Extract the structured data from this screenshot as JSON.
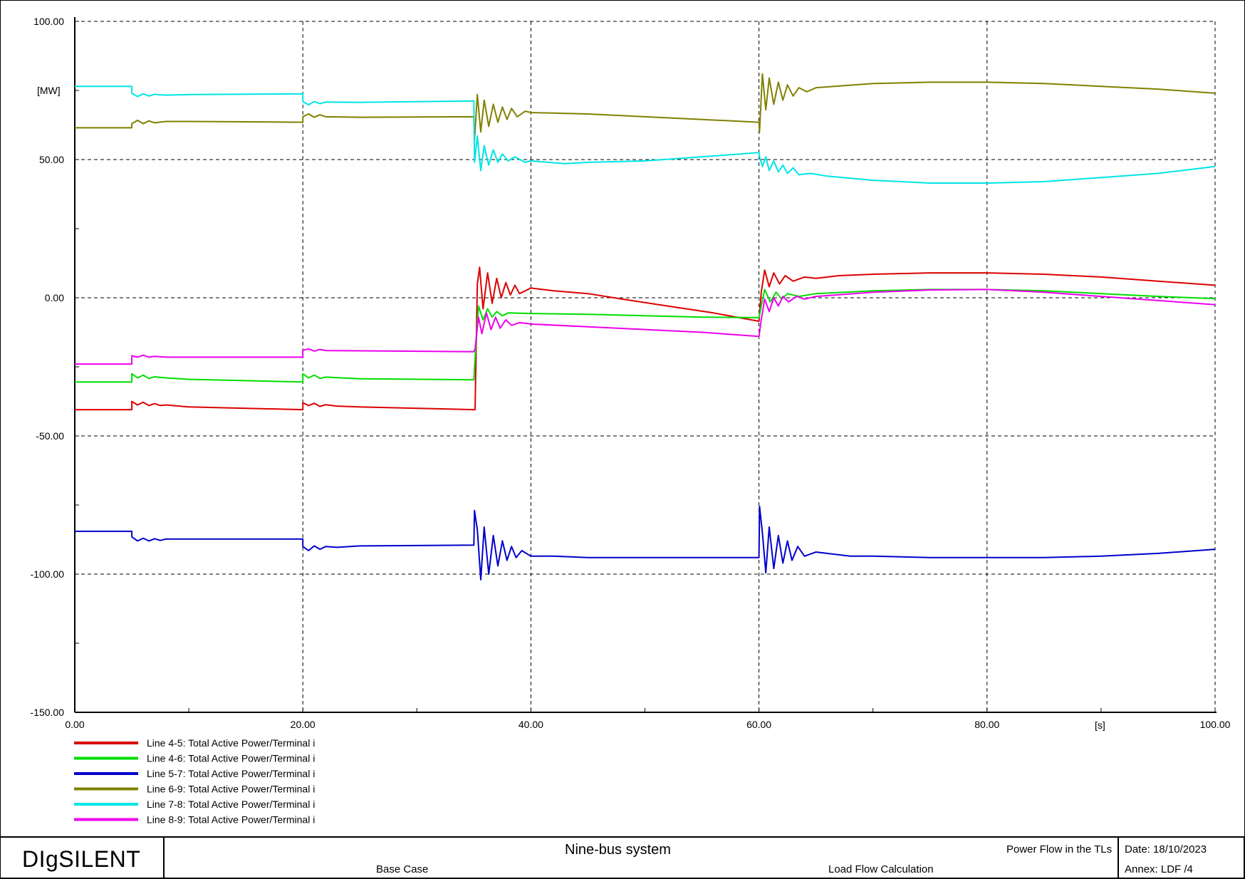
{
  "chart_data": {
    "type": "line",
    "xlabel": "",
    "x_unit": "[s]",
    "ylabel": "[MW]",
    "xlim": [
      0,
      100
    ],
    "ylim": [
      -150,
      100
    ],
    "x_ticks": [
      "0.00",
      "20.00",
      "40.00",
      "60.00",
      "80.00",
      "100.00"
    ],
    "y_ticks": [
      "100.00",
      "50.00",
      "0.00",
      "-50.00",
      "-100.00",
      "-150.00"
    ],
    "grid": true,
    "legend_position": "bottom-left",
    "series": [
      {
        "name": "Line 4-5: Total Active Power/Terminal i",
        "color": "#dd0000",
        "points": [
          [
            0,
            -40.5
          ],
          [
            5,
            -40.5
          ],
          [
            5,
            -37.5
          ],
          [
            5.5,
            -38.8
          ],
          [
            6,
            -37.8
          ],
          [
            6.5,
            -39
          ],
          [
            7,
            -38.3
          ],
          [
            7.5,
            -39
          ],
          [
            8,
            -38.8
          ],
          [
            10,
            -39.5
          ],
          [
            20,
            -40.5
          ],
          [
            20,
            -38
          ],
          [
            20.5,
            -39
          ],
          [
            21,
            -38.2
          ],
          [
            21.5,
            -39.3
          ],
          [
            22,
            -38.7
          ],
          [
            23,
            -39.2
          ],
          [
            25,
            -39.5
          ],
          [
            35,
            -40.5
          ],
          [
            35.1,
            -40.5
          ],
          [
            35.3,
            5
          ],
          [
            35.5,
            11
          ],
          [
            35.8,
            -4
          ],
          [
            36.2,
            9
          ],
          [
            36.6,
            -2
          ],
          [
            37,
            7
          ],
          [
            37.4,
            0
          ],
          [
            37.8,
            5.5
          ],
          [
            38.2,
            1
          ],
          [
            38.6,
            4.5
          ],
          [
            39,
            1.5
          ],
          [
            40,
            3.5
          ],
          [
            42,
            2.5
          ],
          [
            45,
            1.5
          ],
          [
            48,
            -0.5
          ],
          [
            52,
            -3
          ],
          [
            56,
            -5.5
          ],
          [
            60,
            -8.5
          ],
          [
            60.2,
            2
          ],
          [
            60.5,
            10
          ],
          [
            60.9,
            4
          ],
          [
            61.3,
            9
          ],
          [
            61.8,
            5
          ],
          [
            62.3,
            8
          ],
          [
            63,
            6
          ],
          [
            64,
            7.5
          ],
          [
            65,
            7
          ],
          [
            67,
            8
          ],
          [
            70,
            8.5
          ],
          [
            75,
            9
          ],
          [
            80,
            9
          ],
          [
            85,
            8.5
          ],
          [
            90,
            7.5
          ],
          [
            95,
            6
          ],
          [
            100,
            4.5
          ]
        ]
      },
      {
        "name": "Line 4-6: Total Active Power/Terminal i",
        "color": "#00dd00",
        "points": [
          [
            0,
            -30.5
          ],
          [
            5,
            -30.5
          ],
          [
            5,
            -27.5
          ],
          [
            5.5,
            -29
          ],
          [
            6,
            -28
          ],
          [
            6.5,
            -29.2
          ],
          [
            7,
            -28.6
          ],
          [
            8,
            -29
          ],
          [
            10,
            -29.5
          ],
          [
            20,
            -30.5
          ],
          [
            20,
            -27.5
          ],
          [
            20.5,
            -29
          ],
          [
            21,
            -28
          ],
          [
            21.5,
            -29.2
          ],
          [
            22,
            -28.7
          ],
          [
            25,
            -29.3
          ],
          [
            35,
            -29.7
          ],
          [
            35.1,
            -22
          ],
          [
            35.4,
            -3
          ],
          [
            35.8,
            -8
          ],
          [
            36.2,
            -4
          ],
          [
            36.6,
            -7
          ],
          [
            37,
            -5
          ],
          [
            37.5,
            -6.5
          ],
          [
            38,
            -5.5
          ],
          [
            40,
            -5.7
          ],
          [
            45,
            -6
          ],
          [
            50,
            -6.5
          ],
          [
            55,
            -7
          ],
          [
            60,
            -7.2
          ],
          [
            60.2,
            -3
          ],
          [
            60.5,
            3
          ],
          [
            61,
            -1.5
          ],
          [
            61.5,
            2
          ],
          [
            62,
            -0.5
          ],
          [
            62.5,
            1.5
          ],
          [
            63.5,
            0.5
          ],
          [
            65,
            1.5
          ],
          [
            70,
            2.5
          ],
          [
            75,
            3
          ],
          [
            80,
            3
          ],
          [
            85,
            2.5
          ],
          [
            90,
            1.5
          ],
          [
            95,
            0.5
          ],
          [
            100,
            -0.3
          ]
        ]
      },
      {
        "name": "Line 5-7: Total Active Power/Terminal i",
        "color": "#0000cc",
        "points": [
          [
            0,
            -84.5
          ],
          [
            5,
            -84.5
          ],
          [
            5,
            -86.5
          ],
          [
            5.5,
            -88
          ],
          [
            6,
            -87
          ],
          [
            6.5,
            -88
          ],
          [
            7,
            -87.2
          ],
          [
            7.5,
            -87.8
          ],
          [
            8,
            -87.3
          ],
          [
            10,
            -87.3
          ],
          [
            20,
            -87.3
          ],
          [
            20,
            -90
          ],
          [
            20.5,
            -91.5
          ],
          [
            21,
            -89.8
          ],
          [
            21.5,
            -91
          ],
          [
            22,
            -90
          ],
          [
            23,
            -90.3
          ],
          [
            25,
            -89.8
          ],
          [
            35,
            -89.5
          ],
          [
            35.05,
            -77
          ],
          [
            35.3,
            -84
          ],
          [
            35.6,
            -102
          ],
          [
            35.9,
            -83
          ],
          [
            36.3,
            -100
          ],
          [
            36.7,
            -86
          ],
          [
            37.1,
            -97
          ],
          [
            37.5,
            -88
          ],
          [
            37.9,
            -95
          ],
          [
            38.3,
            -90
          ],
          [
            38.7,
            -94
          ],
          [
            39.2,
            -91.5
          ],
          [
            40,
            -93.5
          ],
          [
            42,
            -93.5
          ],
          [
            45,
            -94
          ],
          [
            50,
            -94
          ],
          [
            55,
            -94
          ],
          [
            60,
            -94
          ],
          [
            60.05,
            -75.5
          ],
          [
            60.3,
            -85
          ],
          [
            60.6,
            -99.5
          ],
          [
            60.9,
            -83
          ],
          [
            61.3,
            -98
          ],
          [
            61.7,
            -86
          ],
          [
            62.1,
            -96
          ],
          [
            62.5,
            -88
          ],
          [
            62.9,
            -95
          ],
          [
            63.4,
            -90
          ],
          [
            64,
            -93.5
          ],
          [
            65,
            -92
          ],
          [
            68,
            -93.5
          ],
          [
            70,
            -93.5
          ],
          [
            75,
            -94
          ],
          [
            80,
            -94
          ],
          [
            85,
            -94
          ],
          [
            90,
            -93.5
          ],
          [
            95,
            -92.5
          ],
          [
            100,
            -91
          ]
        ]
      },
      {
        "name": "Line 6-9: Total Active Power/Terminal i",
        "color": "#808000",
        "points": [
          [
            0,
            61.5
          ],
          [
            5,
            61.5
          ],
          [
            5,
            63
          ],
          [
            5.5,
            64.2
          ],
          [
            6,
            63
          ],
          [
            6.5,
            64
          ],
          [
            7,
            63.3
          ],
          [
            8,
            63.8
          ],
          [
            10,
            63.8
          ],
          [
            20,
            63.5
          ],
          [
            20,
            65.5
          ],
          [
            20.5,
            66.5
          ],
          [
            21,
            65.3
          ],
          [
            21.5,
            66.2
          ],
          [
            22,
            65.5
          ],
          [
            25,
            65.3
          ],
          [
            35,
            65.5
          ],
          [
            35.05,
            57
          ],
          [
            35.3,
            73.5
          ],
          [
            35.6,
            60
          ],
          [
            35.9,
            71.5
          ],
          [
            36.3,
            62
          ],
          [
            36.7,
            70
          ],
          [
            37.1,
            63.5
          ],
          [
            37.5,
            69
          ],
          [
            37.9,
            64.5
          ],
          [
            38.3,
            68.5
          ],
          [
            38.8,
            65.5
          ],
          [
            39.5,
            67.5
          ],
          [
            40,
            67
          ],
          [
            45,
            66.5
          ],
          [
            50,
            65.5
          ],
          [
            55,
            64.5
          ],
          [
            60,
            63.5
          ],
          [
            60.05,
            60
          ],
          [
            60.3,
            81
          ],
          [
            60.6,
            68
          ],
          [
            60.9,
            79.5
          ],
          [
            61.3,
            70
          ],
          [
            61.7,
            78
          ],
          [
            62.1,
            71.5
          ],
          [
            62.5,
            77
          ],
          [
            63,
            73
          ],
          [
            63.5,
            76
          ],
          [
            64.2,
            74.5
          ],
          [
            65,
            76
          ],
          [
            70,
            77.5
          ],
          [
            75,
            78
          ],
          [
            80,
            78
          ],
          [
            85,
            77.5
          ],
          [
            90,
            76.5
          ],
          [
            95,
            75.5
          ],
          [
            100,
            74
          ]
        ]
      },
      {
        "name": "Line 7-8: Total Active Power/Terminal i",
        "color": "#00e5e5",
        "points": [
          [
            0,
            76.5
          ],
          [
            5,
            76.5
          ],
          [
            5,
            74
          ],
          [
            5.5,
            72.8
          ],
          [
            6,
            73.8
          ],
          [
            6.5,
            73
          ],
          [
            7,
            73.6
          ],
          [
            8,
            73.3
          ],
          [
            10,
            73.5
          ],
          [
            20,
            73.8
          ],
          [
            20,
            71
          ],
          [
            20.5,
            69.8
          ],
          [
            21,
            71
          ],
          [
            21.5,
            70.2
          ],
          [
            22,
            70.8
          ],
          [
            25,
            70.7
          ],
          [
            35,
            71.2
          ],
          [
            35.05,
            49
          ],
          [
            35.3,
            58.5
          ],
          [
            35.6,
            46
          ],
          [
            35.9,
            55
          ],
          [
            36.3,
            48
          ],
          [
            36.7,
            53.5
          ],
          [
            37.1,
            49
          ],
          [
            37.5,
            52
          ],
          [
            38,
            49.5
          ],
          [
            38.6,
            51
          ],
          [
            39.5,
            49
          ],
          [
            40,
            49.5
          ],
          [
            43,
            48.5
          ],
          [
            45,
            49
          ],
          [
            50,
            49.5
          ],
          [
            55,
            51
          ],
          [
            60,
            52.5
          ],
          [
            60.05,
            51
          ],
          [
            60.3,
            47.5
          ],
          [
            60.6,
            51
          ],
          [
            60.9,
            46
          ],
          [
            61.3,
            49.5
          ],
          [
            61.7,
            45.5
          ],
          [
            62.1,
            48
          ],
          [
            62.5,
            45
          ],
          [
            63,
            47
          ],
          [
            63.5,
            44.5
          ],
          [
            64.5,
            45
          ],
          [
            66,
            44
          ],
          [
            70,
            42.5
          ],
          [
            75,
            41.5
          ],
          [
            80,
            41.5
          ],
          [
            85,
            42
          ],
          [
            90,
            43.5
          ],
          [
            95,
            45
          ],
          [
            100,
            47.5
          ]
        ]
      },
      {
        "name": "Line 8-9: Total Active Power/Terminal i",
        "color": "#ee00ee",
        "points": [
          [
            0,
            -24
          ],
          [
            5,
            -24
          ],
          [
            5,
            -21
          ],
          [
            5.5,
            -21.5
          ],
          [
            6,
            -20.8
          ],
          [
            6.5,
            -21.5
          ],
          [
            7,
            -21.2
          ],
          [
            8,
            -21.5
          ],
          [
            10,
            -21.5
          ],
          [
            20,
            -21.5
          ],
          [
            20,
            -19
          ],
          [
            20.5,
            -18.5
          ],
          [
            21,
            -19.3
          ],
          [
            21.5,
            -18.7
          ],
          [
            22,
            -19.1
          ],
          [
            25,
            -19.2
          ],
          [
            35,
            -19.5
          ],
          [
            35.1,
            -18.5
          ],
          [
            35.4,
            -7
          ],
          [
            35.7,
            -13
          ],
          [
            36.1,
            -5.5
          ],
          [
            36.5,
            -11.5
          ],
          [
            36.9,
            -7
          ],
          [
            37.3,
            -11
          ],
          [
            37.8,
            -8
          ],
          [
            38.3,
            -10
          ],
          [
            39,
            -9
          ],
          [
            40,
            -9.5
          ],
          [
            45,
            -10.5
          ],
          [
            50,
            -11.5
          ],
          [
            55,
            -12.5
          ],
          [
            60,
            -14
          ],
          [
            60.2,
            -8
          ],
          [
            60.5,
            -0.5
          ],
          [
            60.9,
            -5
          ],
          [
            61.3,
            0
          ],
          [
            61.7,
            -3
          ],
          [
            62.1,
            0.5
          ],
          [
            62.6,
            -1.5
          ],
          [
            63.3,
            0.5
          ],
          [
            64,
            -0.5
          ],
          [
            65,
            0.5
          ],
          [
            70,
            2
          ],
          [
            75,
            2.8
          ],
          [
            80,
            3
          ],
          [
            85,
            2
          ],
          [
            90,
            0.5
          ],
          [
            95,
            -1
          ],
          [
            100,
            -2.5
          ]
        ]
      }
    ]
  },
  "footer": {
    "brand": "DIgSILENT",
    "title": "Nine-bus system",
    "subtitle": "Power Flow in the TLs",
    "study_case": "Base Case",
    "calculation": "Load Flow Calculation",
    "date": "Date:  18/10/2023",
    "annex": "Annex:  LDF /4"
  }
}
